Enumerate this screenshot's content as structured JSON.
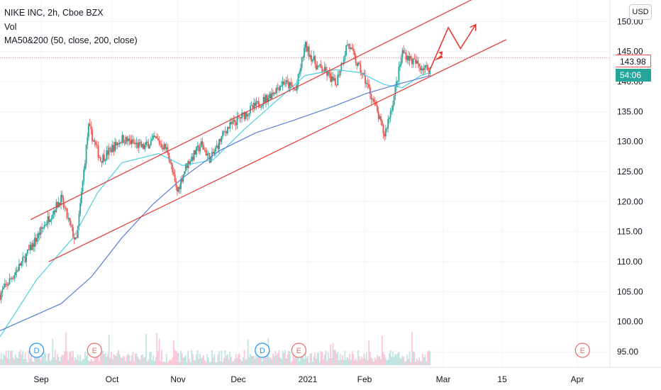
{
  "header": {
    "symbol_line": "NIKE INC, 2h, Cboe BZX",
    "indicator_vol": "Vol",
    "indicator_ma": "MA50&200 (50, close, 200, close)"
  },
  "currency_button": "USD",
  "price_tags": {
    "last": "143.98",
    "countdown": "54:06"
  },
  "colors": {
    "up": "#26a69a",
    "down": "#ef5350",
    "ma50": "#4dd0e1",
    "ma200": "#5b7fd6",
    "channel": "#e53935",
    "arrow": "#e53935",
    "grid": "#f0f3fa",
    "dividend": "#2196f3",
    "earnings": "#e57373"
  },
  "chart_data": {
    "type": "candlestick",
    "title": "NIKE INC, 2h, Cboe BZX",
    "ylim": [
      93,
      153
    ],
    "y_ticks": [
      "150.00",
      "145.00",
      "140.00",
      "135.00",
      "130.00",
      "125.00",
      "120.00",
      "115.00",
      "110.00",
      "105.00",
      "100.00",
      "95.00"
    ],
    "x_ticks": [
      "Sep",
      "Oct",
      "Nov",
      "Dec",
      "2021",
      "Feb",
      "Mar",
      "15",
      "Apr"
    ],
    "price_path": [
      {
        "x": 0,
        "y": 104.5
      },
      {
        "x": 0.04,
        "y": 110.5
      },
      {
        "x": 0.075,
        "y": 116.5
      },
      {
        "x": 0.1,
        "y": 120.5
      },
      {
        "x": 0.125,
        "y": 113.0
      },
      {
        "x": 0.145,
        "y": 132.5
      },
      {
        "x": 0.165,
        "y": 127.0
      },
      {
        "x": 0.2,
        "y": 130.5
      },
      {
        "x": 0.235,
        "y": 129.0
      },
      {
        "x": 0.255,
        "y": 130.5
      },
      {
        "x": 0.275,
        "y": 128.5
      },
      {
        "x": 0.29,
        "y": 121.5
      },
      {
        "x": 0.305,
        "y": 126.0
      },
      {
        "x": 0.33,
        "y": 129.5
      },
      {
        "x": 0.345,
        "y": 127.0
      },
      {
        "x": 0.37,
        "y": 132.0
      },
      {
        "x": 0.4,
        "y": 134.5
      },
      {
        "x": 0.44,
        "y": 137.5
      },
      {
        "x": 0.465,
        "y": 140.0
      },
      {
        "x": 0.485,
        "y": 138.5
      },
      {
        "x": 0.5,
        "y": 146.0
      },
      {
        "x": 0.52,
        "y": 142.5
      },
      {
        "x": 0.535,
        "y": 141.5
      },
      {
        "x": 0.55,
        "y": 139.5
      },
      {
        "x": 0.57,
        "y": 146.5
      },
      {
        "x": 0.585,
        "y": 143.0
      },
      {
        "x": 0.6,
        "y": 140.0
      },
      {
        "x": 0.615,
        "y": 136.0
      },
      {
        "x": 0.63,
        "y": 131.0
      },
      {
        "x": 0.645,
        "y": 137.0
      },
      {
        "x": 0.66,
        "y": 145.0
      },
      {
        "x": 0.675,
        "y": 143.5
      },
      {
        "x": 0.69,
        "y": 142.5
      },
      {
        "x": 0.705,
        "y": 142.0
      }
    ],
    "ma50": [
      {
        "x": 0,
        "y": 97.5
      },
      {
        "x": 0.06,
        "y": 107.0
      },
      {
        "x": 0.12,
        "y": 114.0
      },
      {
        "x": 0.16,
        "y": 121.5
      },
      {
        "x": 0.2,
        "y": 126.5
      },
      {
        "x": 0.26,
        "y": 128.0
      },
      {
        "x": 0.3,
        "y": 126.0
      },
      {
        "x": 0.35,
        "y": 127.0
      },
      {
        "x": 0.4,
        "y": 132.0
      },
      {
        "x": 0.45,
        "y": 136.5
      },
      {
        "x": 0.5,
        "y": 141.0
      },
      {
        "x": 0.55,
        "y": 142.0
      },
      {
        "x": 0.59,
        "y": 141.5
      },
      {
        "x": 0.63,
        "y": 139.5
      },
      {
        "x": 0.66,
        "y": 139.0
      },
      {
        "x": 0.69,
        "y": 141.0
      },
      {
        "x": 0.705,
        "y": 141.5
      }
    ],
    "ma200": [
      {
        "x": 0,
        "y": 98.5
      },
      {
        "x": 0.1,
        "y": 103.0
      },
      {
        "x": 0.15,
        "y": 107.5
      },
      {
        "x": 0.2,
        "y": 114.0
      },
      {
        "x": 0.25,
        "y": 119.5
      },
      {
        "x": 0.3,
        "y": 124.0
      },
      {
        "x": 0.36,
        "y": 128.5
      },
      {
        "x": 0.42,
        "y": 131.5
      },
      {
        "x": 0.48,
        "y": 133.5
      },
      {
        "x": 0.55,
        "y": 136.0
      },
      {
        "x": 0.6,
        "y": 138.0
      },
      {
        "x": 0.65,
        "y": 139.5
      },
      {
        "x": 0.705,
        "y": 141.0
      }
    ],
    "channel_upper": [
      {
        "x": 0.05,
        "y": 117.0
      },
      {
        "x": 0.82,
        "y": 156.0
      }
    ],
    "channel_lower": [
      {
        "x": 0.08,
        "y": 110.0
      },
      {
        "x": 0.83,
        "y": 147.0
      }
    ],
    "projection": [
      {
        "x": 0.705,
        "y": 142.0
      },
      {
        "x": 0.735,
        "y": 149.0
      },
      {
        "x": 0.755,
        "y": 145.5
      },
      {
        "x": 0.78,
        "y": 149.5
      }
    ],
    "events": [
      {
        "type": "D",
        "x": 0.06
      },
      {
        "type": "E",
        "x": 0.155
      },
      {
        "type": "D",
        "x": 0.43
      },
      {
        "type": "E",
        "x": 0.49
      },
      {
        "type": "E",
        "x": 0.955
      }
    ]
  }
}
